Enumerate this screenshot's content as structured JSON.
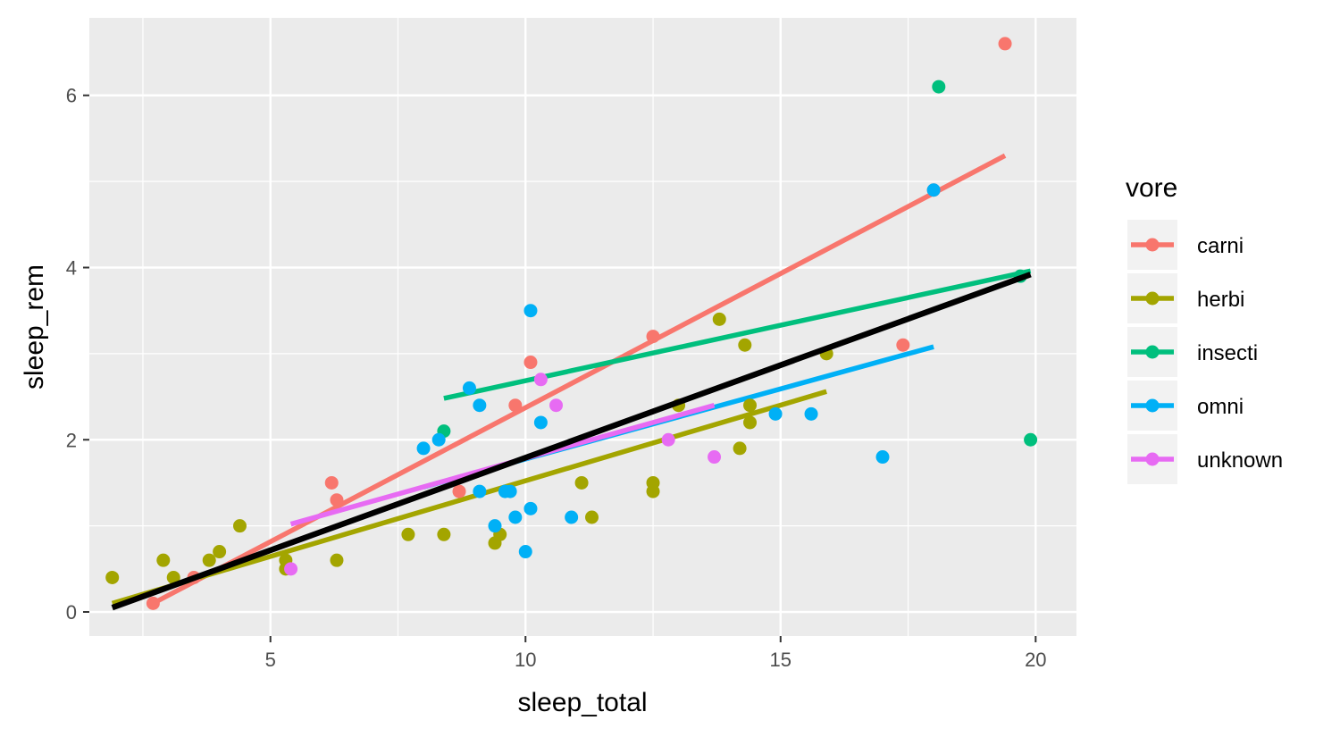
{
  "chart_data": {
    "type": "scatter",
    "xlabel": "sleep_total",
    "ylabel": "sleep_rem",
    "xlim": [
      1.45,
      20.8
    ],
    "ylim": [
      -0.28,
      6.9
    ],
    "x_ticks": [
      5,
      10,
      15,
      20
    ],
    "y_ticks": [
      0,
      2,
      4,
      6
    ],
    "grid": true,
    "legend": {
      "title": "vore",
      "position": "right"
    },
    "series": [
      {
        "name": "carni",
        "color": "#F8766D",
        "points": [
          [
            2.7,
            0.1
          ],
          [
            3.5,
            0.4
          ],
          [
            6.2,
            1.5
          ],
          [
            6.3,
            1.3
          ],
          [
            8.7,
            1.4
          ],
          [
            9.8,
            2.4
          ],
          [
            10.1,
            2.9
          ],
          [
            12.5,
            3.2
          ],
          [
            17.4,
            3.1
          ],
          [
            18.0,
            4.9
          ],
          [
            19.4,
            6.6
          ]
        ],
        "fit": [
          [
            2.7,
            0.1
          ],
          [
            19.4,
            5.3
          ]
        ]
      },
      {
        "name": "herbi",
        "color": "#A3A500",
        "points": [
          [
            1.9,
            0.4
          ],
          [
            2.9,
            0.6
          ],
          [
            3.1,
            0.4
          ],
          [
            3.8,
            0.6
          ],
          [
            4.0,
            0.7
          ],
          [
            4.4,
            1.0
          ],
          [
            5.3,
            0.6
          ],
          [
            5.3,
            0.5
          ],
          [
            6.3,
            0.6
          ],
          [
            7.7,
            0.9
          ],
          [
            8.4,
            0.9
          ],
          [
            9.4,
            0.8
          ],
          [
            9.5,
            0.9
          ],
          [
            11.1,
            1.5
          ],
          [
            11.3,
            1.1
          ],
          [
            12.5,
            1.5
          ],
          [
            12.5,
            1.4
          ],
          [
            13.0,
            2.4
          ],
          [
            13.8,
            3.4
          ],
          [
            14.2,
            1.9
          ],
          [
            14.3,
            3.1
          ],
          [
            14.4,
            2.4
          ],
          [
            14.4,
            2.2
          ],
          [
            15.9,
            3.0
          ]
        ],
        "fit": [
          [
            1.9,
            0.1
          ],
          [
            15.9,
            2.56
          ]
        ]
      },
      {
        "name": "insecti",
        "color": "#00BF7D",
        "points": [
          [
            8.4,
            2.1
          ],
          [
            18.1,
            6.1
          ],
          [
            19.7,
            3.9
          ],
          [
            19.9,
            2.0
          ]
        ],
        "fit": [
          [
            8.4,
            2.48
          ],
          [
            19.9,
            3.96
          ]
        ]
      },
      {
        "name": "omni",
        "color": "#00B0F6",
        "points": [
          [
            8.0,
            1.9
          ],
          [
            8.3,
            2.0
          ],
          [
            8.9,
            2.6
          ],
          [
            9.1,
            2.4
          ],
          [
            9.1,
            1.4
          ],
          [
            9.4,
            1.0
          ],
          [
            9.6,
            1.4
          ],
          [
            9.7,
            1.4
          ],
          [
            9.8,
            1.1
          ],
          [
            10.0,
            0.7
          ],
          [
            10.1,
            1.2
          ],
          [
            10.1,
            3.5
          ],
          [
            10.3,
            2.2
          ],
          [
            10.9,
            1.1
          ],
          [
            14.9,
            2.3
          ],
          [
            15.6,
            2.3
          ],
          [
            17.0,
            1.8
          ],
          [
            18.0,
            4.9
          ]
        ],
        "fit": [
          [
            8.0,
            1.45
          ],
          [
            18.0,
            3.08
          ]
        ]
      },
      {
        "name": "unknown",
        "color": "#E76BF3",
        "points": [
          [
            5.4,
            0.5
          ],
          [
            10.3,
            2.7
          ],
          [
            10.6,
            2.4
          ],
          [
            12.8,
            2.0
          ],
          [
            13.7,
            1.8
          ]
        ],
        "fit": [
          [
            5.4,
            1.02
          ],
          [
            13.7,
            2.4
          ]
        ]
      }
    ],
    "overall_fit": {
      "color": "#000000",
      "line": [
        [
          1.9,
          0.05
        ],
        [
          19.9,
          3.92
        ]
      ]
    }
  }
}
